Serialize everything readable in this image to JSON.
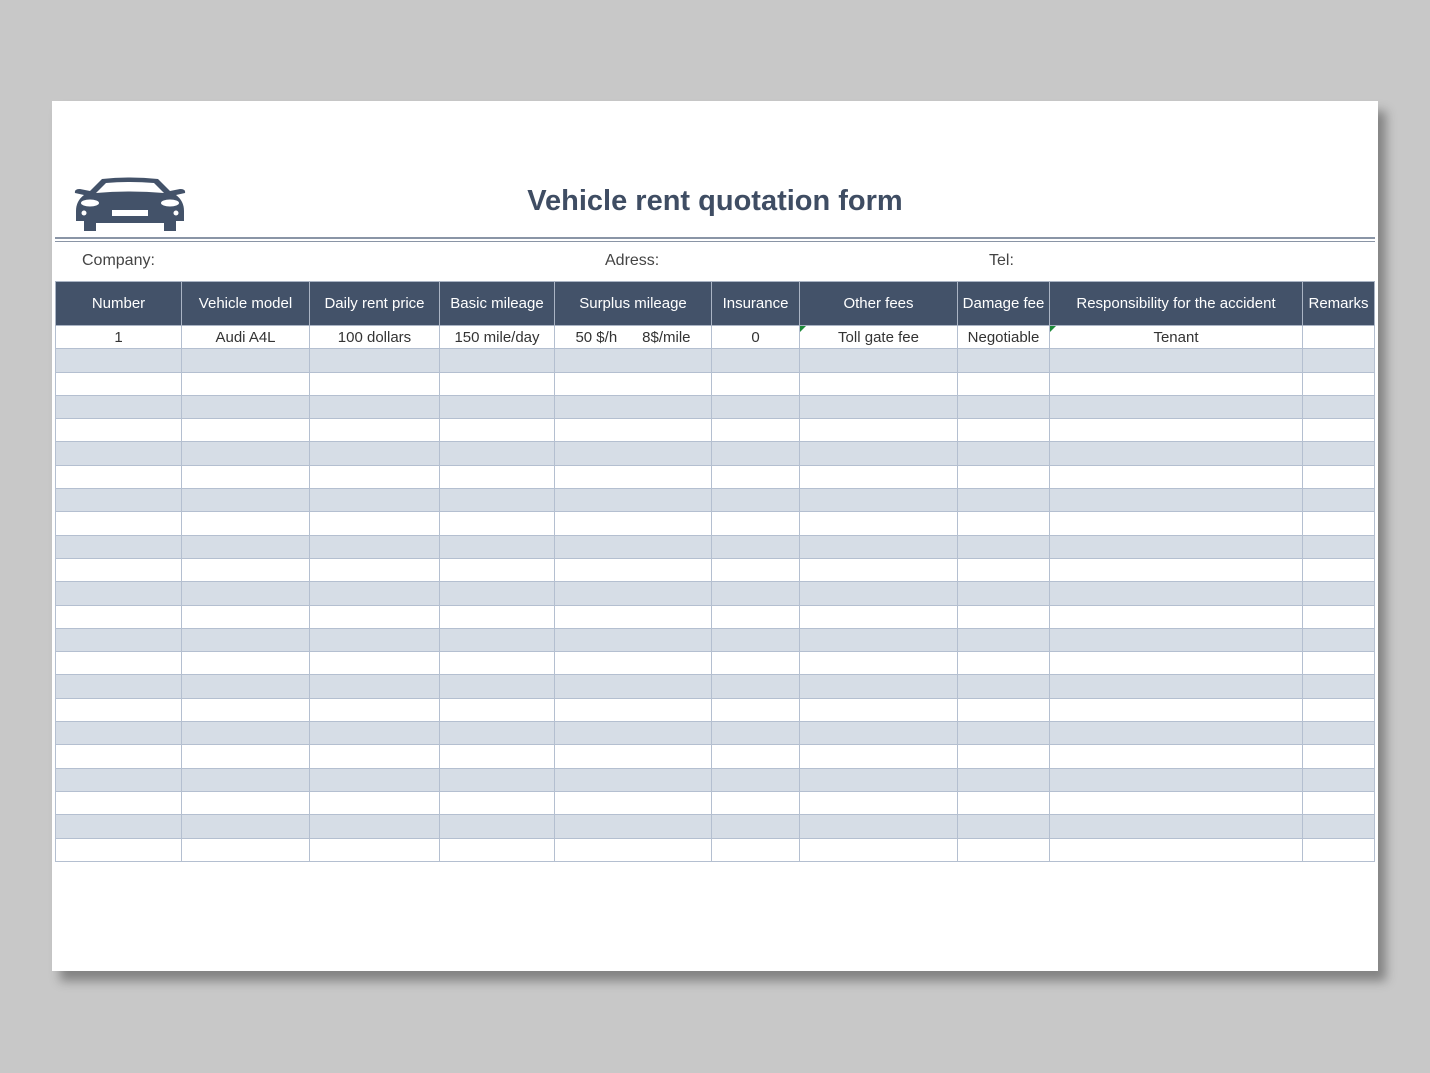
{
  "title": "Vehicle rent quotation form",
  "logo_icon": "car-icon",
  "fields": {
    "company": "Company:",
    "address": "Adress:",
    "tel": "Tel:"
  },
  "colors": {
    "header_bg": "#435269",
    "stripe": "#d6dde6",
    "title": "#3f4d63"
  },
  "table": {
    "columns": [
      "Number",
      "Vehicle model",
      "Daily rent price",
      "Basic mileage",
      "Surplus mileage",
      "Insurance",
      "Other fees",
      "Damage fee",
      "Responsibility for the accident",
      "Remarks"
    ],
    "rows": [
      [
        "1",
        "Audi A4L",
        "100 dollars",
        "150 mile/day",
        "50 $/h      8$/mile",
        "0",
        "Toll gate fee",
        "Negotiable",
        "Tenant",
        ""
      ]
    ]
  }
}
